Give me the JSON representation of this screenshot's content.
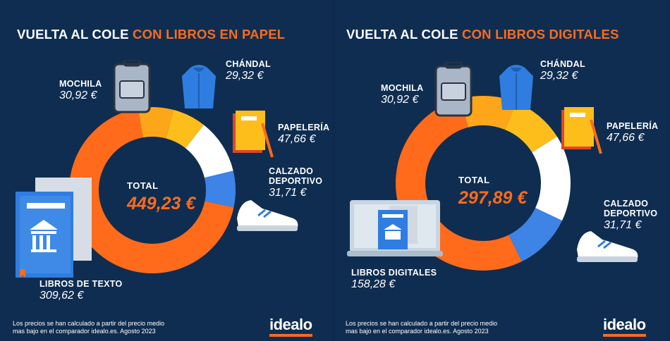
{
  "panels": [
    {
      "title_plain": "VUELTA AL COLE ",
      "title_accent": "CON LIBROS EN PAPEL",
      "total_label": "TOTAL",
      "total_value": "449,23 €",
      "footnote": "Los precios se han calculado a partir del precio medio mas bajo en el comparador idealo.es. Agosto 2023",
      "logo": "idealo"
    },
    {
      "title_plain": "VUELTA AL COLE ",
      "title_accent": "CON LIBROS DIGITALES",
      "total_label": "TOTAL",
      "total_value": "297,89 €",
      "footnote": "Los precios se han calculado a partir del precio medio mas bajo en el comparador idealo.es. Agosto 2023",
      "logo": "idealo"
    }
  ],
  "chart_data": [
    {
      "type": "pie",
      "title": "VUELTA AL COLE CON LIBROS EN PAPEL",
      "total": 449.23,
      "unit": "€",
      "series": [
        {
          "name": "MOCHILA",
          "label": "30,92 €",
          "value": 30.92,
          "color": "#fda61a"
        },
        {
          "name": "CHÁNDAL",
          "label": "29,32 €",
          "value": 29.32,
          "color": "#fdbe1c"
        },
        {
          "name": "PAPELERÍA",
          "label": "47,66 €",
          "value": 47.66,
          "color": "#ffffff"
        },
        {
          "name": "CALZADO DEPORTIVO",
          "label": "31,71 €",
          "value": 31.71,
          "color": "#3e83e6"
        },
        {
          "name": "LIBROS DE TEXTO",
          "label": "309,62 €",
          "value": 309.62,
          "color": "#ff6b1a"
        }
      ]
    },
    {
      "type": "pie",
      "title": "VUELTA AL COLE CON LIBROS DIGITALES",
      "total": 297.89,
      "unit": "€",
      "series": [
        {
          "name": "MOCHILA",
          "label": "30,92 €",
          "value": 30.92,
          "color": "#fda61a"
        },
        {
          "name": "CHÁNDAL",
          "label": "29,32 €",
          "value": 29.32,
          "color": "#fdbe1c"
        },
        {
          "name": "PAPELERÍA",
          "label": "47,66 €",
          "value": 47.66,
          "color": "#ffffff"
        },
        {
          "name": "CALZADO DEPORTIVO",
          "label": "31,71 €",
          "value": 31.71,
          "color": "#3e83e6"
        },
        {
          "name": "LIBROS DIGITALES",
          "label": "158,28 €",
          "value": 158.28,
          "color": "#ff6b1a"
        }
      ]
    }
  ]
}
